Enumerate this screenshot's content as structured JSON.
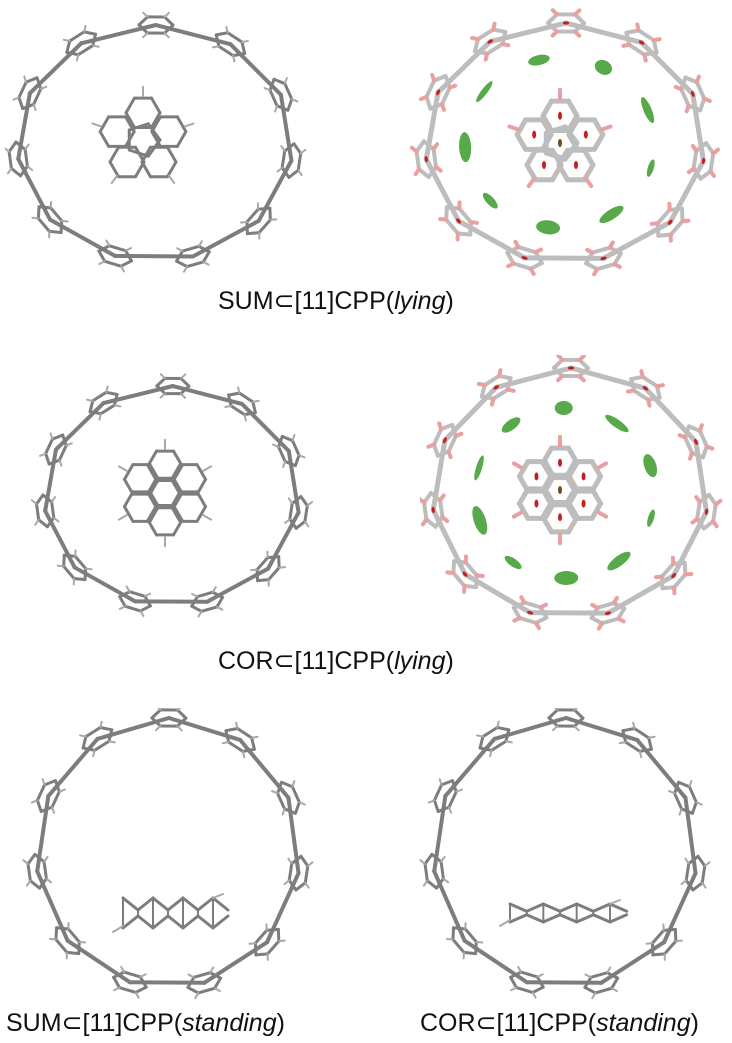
{
  "figure": {
    "captions": [
      {
        "pre": "SUM⊂[11]CPP(",
        "mode": "lying",
        "post": ")"
      },
      {
        "pre": "COR⊂[11]CPP(",
        "mode": "lying",
        "post": ")"
      },
      {
        "pre": "SUM⊂[11]CPP(",
        "mode": "standing",
        "post": ")"
      },
      {
        "pre": "COR⊂[11]CPP(",
        "mode": "standing",
        "post": ")"
      }
    ],
    "colors": {
      "carbon": "#7d7d7d",
      "carbon_light": "#bdbdbd",
      "hydrogen_tip": "#e8a0a0",
      "nci_green": "#3a9a2a",
      "nci_red": "#c81e1e",
      "nci_brown": "#7a4a1a"
    }
  }
}
